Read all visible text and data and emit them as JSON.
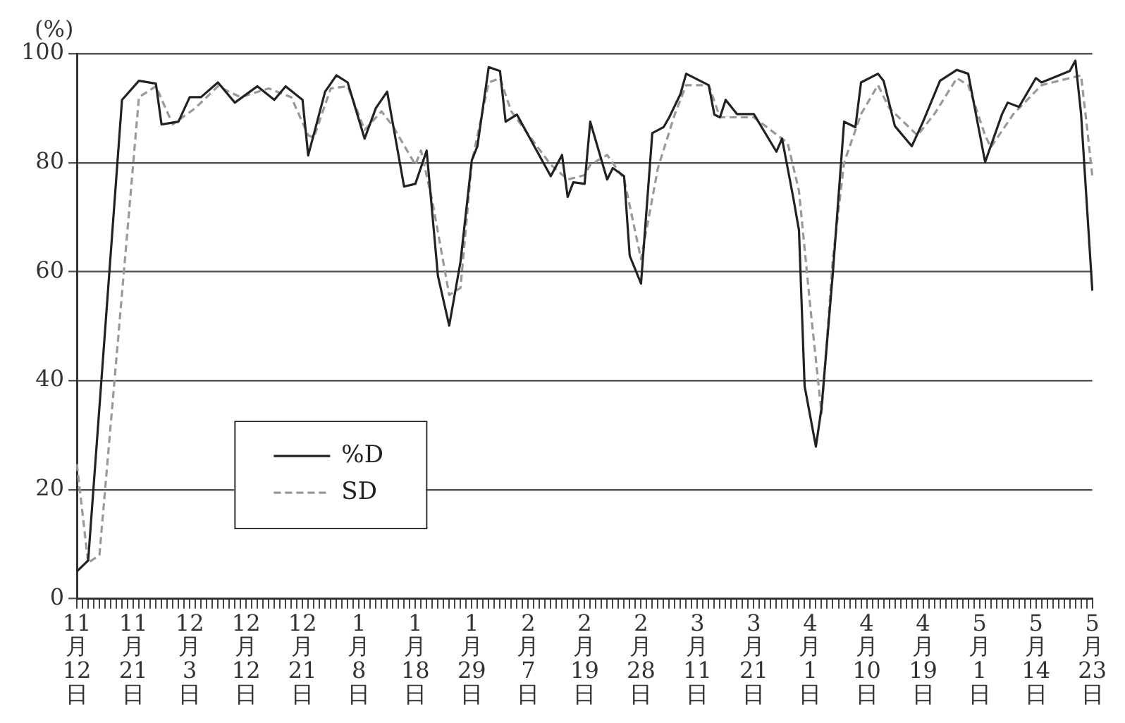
{
  "chart_data": {
    "type": "line",
    "ylabel": "(%)",
    "ylim": [
      0,
      100
    ],
    "yticks": [
      0,
      20,
      40,
      60,
      80,
      100
    ],
    "grid": "y",
    "legend": "bottom left",
    "marker": "none",
    "categories": [
      "11月12日",
      null,
      null,
      null,
      null,
      null,
      null,
      null,
      null,
      null,
      "11月21日",
      null,
      null,
      null,
      null,
      null,
      null,
      null,
      null,
      null,
      "12月3日",
      null,
      null,
      null,
      null,
      null,
      null,
      null,
      null,
      null,
      "12月12日",
      null,
      null,
      null,
      null,
      null,
      null,
      null,
      null,
      null,
      "12月21日",
      null,
      null,
      null,
      null,
      null,
      null,
      null,
      null,
      null,
      "1月8日",
      null,
      null,
      null,
      null,
      null,
      null,
      null,
      null,
      null,
      "1月18日",
      null,
      null,
      null,
      null,
      null,
      null,
      null,
      null,
      null,
      "1月29日",
      null,
      null,
      null,
      null,
      null,
      null,
      null,
      null,
      null,
      "2月7日",
      null,
      null,
      null,
      null,
      null,
      null,
      null,
      null,
      null,
      "2月19日",
      null,
      null,
      null,
      null,
      null,
      null,
      null,
      null,
      null,
      "2月28日",
      null,
      null,
      null,
      null,
      null,
      null,
      null,
      null,
      null,
      "3月11日",
      null,
      null,
      null,
      null,
      null,
      null,
      null,
      null,
      null,
      "3月21日",
      null,
      null,
      null,
      null,
      null,
      null,
      null,
      null,
      null,
      "4月1日",
      null,
      null,
      null,
      null,
      null,
      null,
      null,
      null,
      null,
      "4月10日",
      null,
      null,
      null,
      null,
      null,
      null,
      null,
      null,
      null,
      "4月19日",
      null,
      null,
      null,
      null,
      null,
      null,
      null,
      null,
      null,
      "5月1日",
      null,
      null,
      null,
      null,
      null,
      null,
      null,
      null,
      null,
      "5月14日",
      null,
      null,
      null,
      null,
      null,
      null,
      null,
      null,
      null,
      "5月23日"
    ],
    "series": [
      {
        "name": "%D",
        "color": "#222222",
        "line_style": "solid",
        "values": [
          5,
          null,
          7,
          null,
          null,
          null,
          null,
          null,
          91.5,
          null,
          null,
          95,
          null,
          null,
          94.5,
          87,
          null,
          null,
          87.5,
          null,
          92,
          null,
          92,
          null,
          null,
          94.7,
          null,
          null,
          91,
          null,
          null,
          null,
          94,
          null,
          null,
          91.5,
          null,
          94,
          null,
          null,
          91.5,
          81.3,
          null,
          null,
          93,
          null,
          96,
          null,
          94.7,
          null,
          null,
          84.4,
          null,
          90,
          null,
          93,
          null,
          null,
          75.6,
          null,
          76.1,
          null,
          82.2,
          null,
          59.2,
          null,
          50.1,
          null,
          61.8,
          null,
          80.4,
          83,
          null,
          97.5,
          null,
          96.8,
          87.5,
          null,
          88.8,
          null,
          null,
          null,
          null,
          null,
          77.5,
          null,
          81.4,
          73.7,
          76.4,
          null,
          76.1,
          87.5,
          null,
          null,
          76.9,
          79,
          null,
          77.5,
          62.9,
          null,
          57.8,
          null,
          85.4,
          null,
          86.5,
          88.3,
          null,
          92.6,
          96.3,
          null,
          null,
          null,
          94.2,
          88.8,
          88.3,
          91.5,
          null,
          88.9,
          null,
          null,
          88.9,
          null,
          null,
          null,
          82,
          84.4,
          null,
          73.5,
          67.6,
          39,
          null,
          27.9,
          35,
          null,
          59.7,
          null,
          87.5,
          null,
          86.5,
          94.7,
          null,
          null,
          96.3,
          95,
          null,
          86.7,
          null,
          null,
          83,
          null,
          87.5,
          null,
          null,
          95,
          null,
          null,
          97,
          null,
          96.3,
          null,
          null,
          80.1,
          null,
          null,
          88.9,
          91,
          null,
          90.2,
          null,
          null,
          95.5,
          94.7,
          null,
          null,
          null,
          null,
          96.8,
          98.7,
          89,
          null,
          56.5
        ]
      },
      {
        "name": "SD",
        "color": "#999999",
        "line_style": "dashed",
        "values": [
          24.7,
          null,
          6.6,
          null,
          8,
          null,
          null,
          null,
          null,
          null,
          null,
          92,
          null,
          null,
          94,
          null,
          null,
          87,
          null,
          null,
          null,
          90,
          null,
          null,
          null,
          94,
          null,
          null,
          null,
          92,
          null,
          null,
          null,
          null,
          93.6,
          null,
          null,
          null,
          92,
          null,
          null,
          85,
          84.6,
          null,
          null,
          93.6,
          null,
          null,
          94,
          null,
          null,
          86,
          null,
          null,
          89.4,
          null,
          86.7,
          null,
          null,
          null,
          79.6,
          82.2,
          null,
          73,
          null,
          null,
          55.7,
          null,
          57,
          null,
          80,
          null,
          null,
          94.7,
          null,
          95.5,
          null,
          89.4,
          null,
          null,
          null,
          null,
          null,
          null,
          79.6,
          null,
          null,
          76.9,
          null,
          null,
          77.7,
          79.6,
          null,
          null,
          81.4,
          null,
          null,
          77,
          null,
          null,
          62.3,
          null,
          null,
          79,
          null,
          null,
          88.9,
          null,
          94.2,
          null,
          null,
          null,
          94.2,
          null,
          88.3,
          null,
          null,
          null,
          null,
          null,
          88.3,
          null,
          null,
          null,
          null,
          null,
          83.6,
          null,
          74.8,
          null,
          53.6,
          null,
          34,
          null,
          62.3,
          null,
          80,
          null,
          null,
          88.9,
          null,
          null,
          94.2,
          null,
          90,
          null,
          null,
          null,
          null,
          85,
          null,
          null,
          88.9,
          null,
          null,
          null,
          95.5,
          null,
          94.2,
          null,
          null,
          85,
          82.8,
          null,
          null,
          null,
          88.9,
          null,
          null,
          null,
          null,
          94.2,
          null,
          null,
          null,
          null,
          95.5,
          null,
          96,
          87,
          77.5
        ]
      }
    ]
  }
}
